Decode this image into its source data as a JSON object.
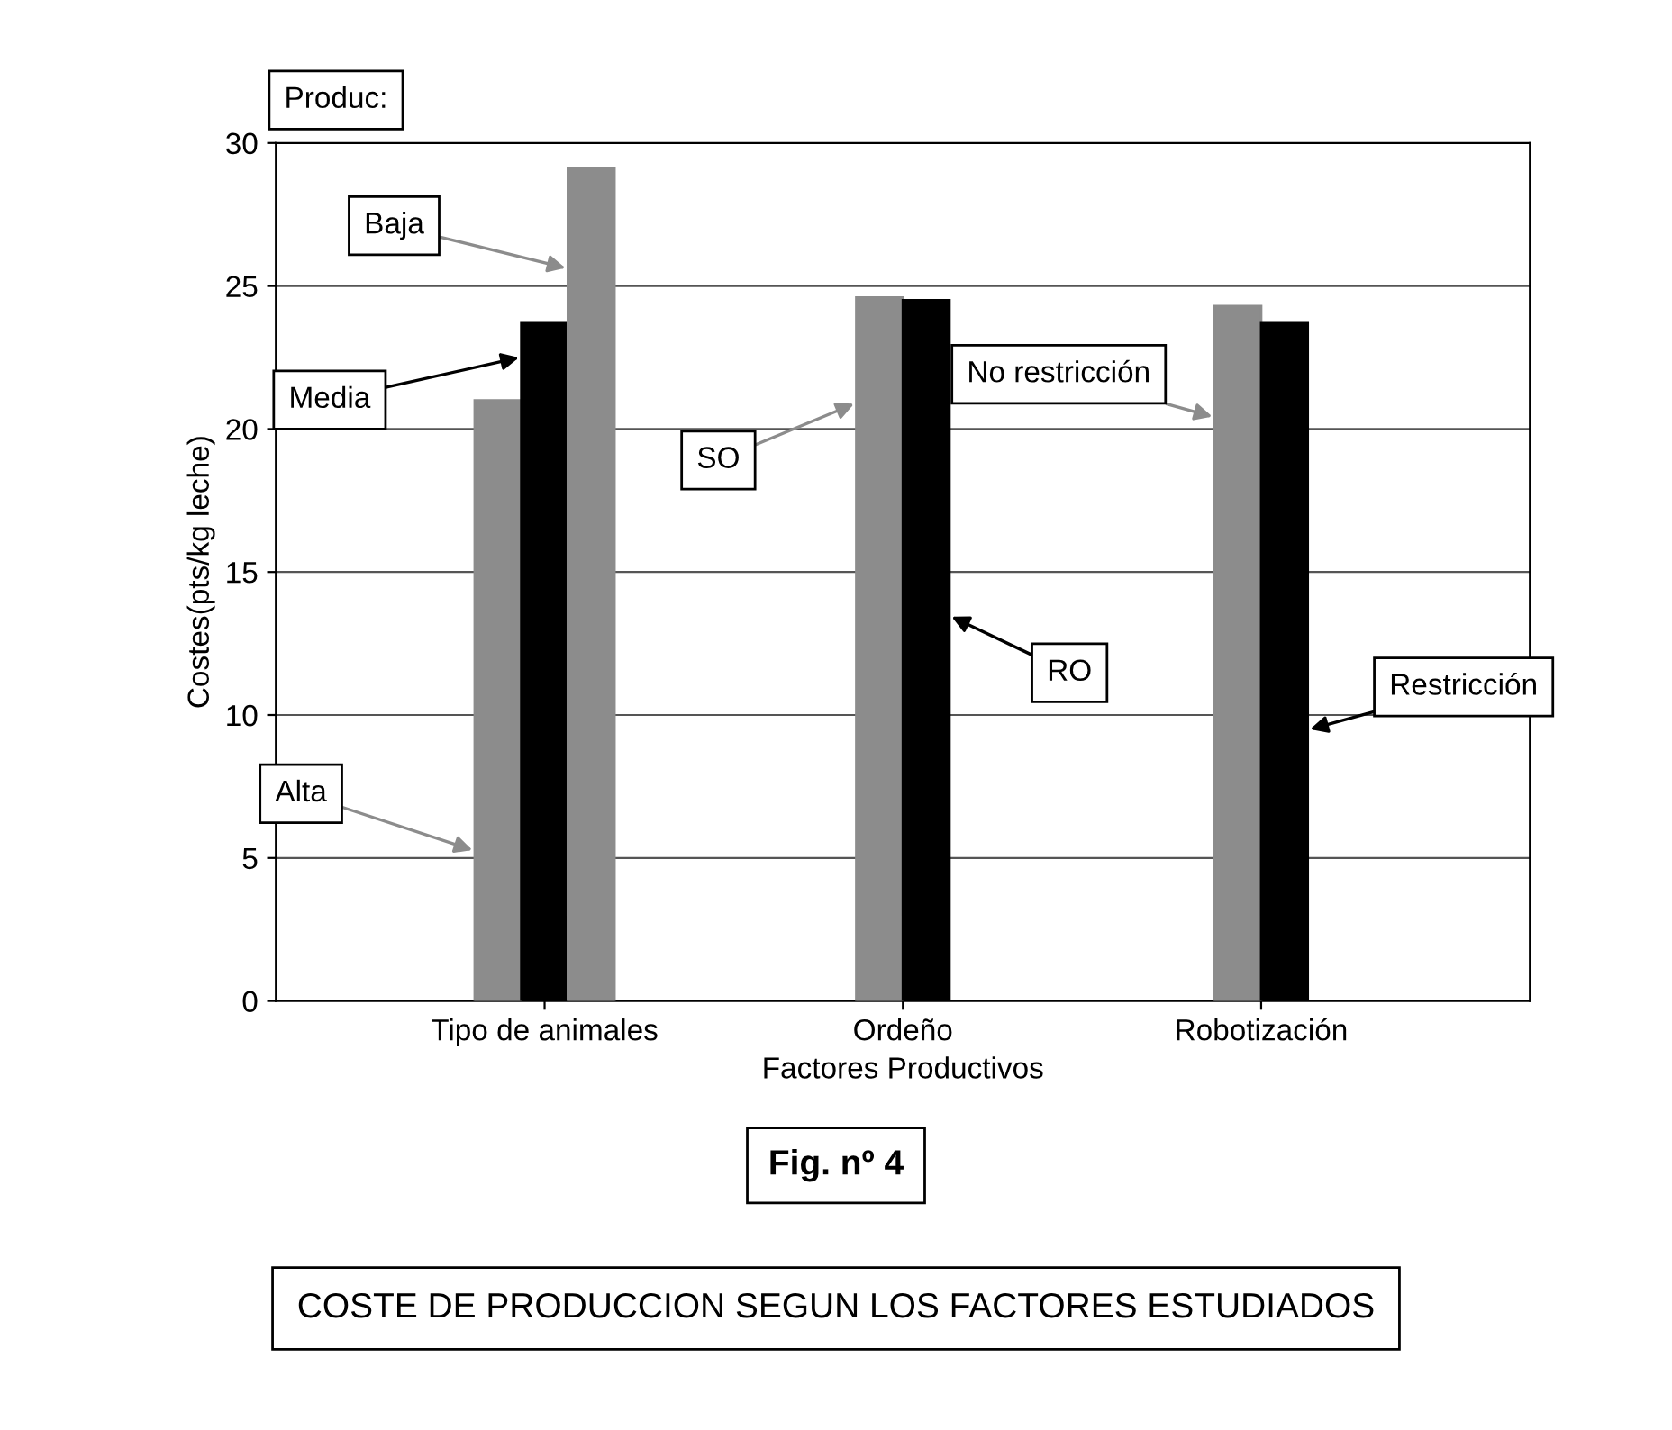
{
  "chart_data": {
    "type": "bar",
    "title": "COSTE DE PRODUCCION SEGUN LOS FACTORES ESTUDIADOS",
    "xlabel": "Factores Productivos",
    "ylabel": "Costes(pts/kg leche)",
    "legend_title": "Produc:",
    "annotations": [
      "Fig. nº 4"
    ],
    "categories": [
      "Tipo de animales",
      "Ordeño",
      "Robotización"
    ],
    "series": [
      {
        "name": "Alta",
        "color": "#8c8c8c",
        "values": [
          21.0,
          null,
          null
        ]
      },
      {
        "name": "Media",
        "color": "#000000",
        "values": [
          23.7,
          null,
          null
        ]
      },
      {
        "name": "Baja",
        "color": "#8c8c8c",
        "values": [
          29.1,
          null,
          null
        ]
      },
      {
        "name": "SO",
        "color": "#8c8c8c",
        "values": [
          null,
          24.6,
          null
        ]
      },
      {
        "name": "RO",
        "color": "#000000",
        "values": [
          null,
          24.5,
          null
        ]
      },
      {
        "name": "No restricción",
        "color": "#8c8c8c",
        "values": [
          null,
          null,
          24.3
        ]
      },
      {
        "name": "Restricción",
        "color": "#000000",
        "values": [
          null,
          null,
          23.7
        ]
      }
    ],
    "ylim": [
      0,
      30
    ],
    "yticks": [
      0,
      5,
      10,
      15,
      20,
      25,
      30
    ],
    "grid": "y",
    "legend": false
  }
}
